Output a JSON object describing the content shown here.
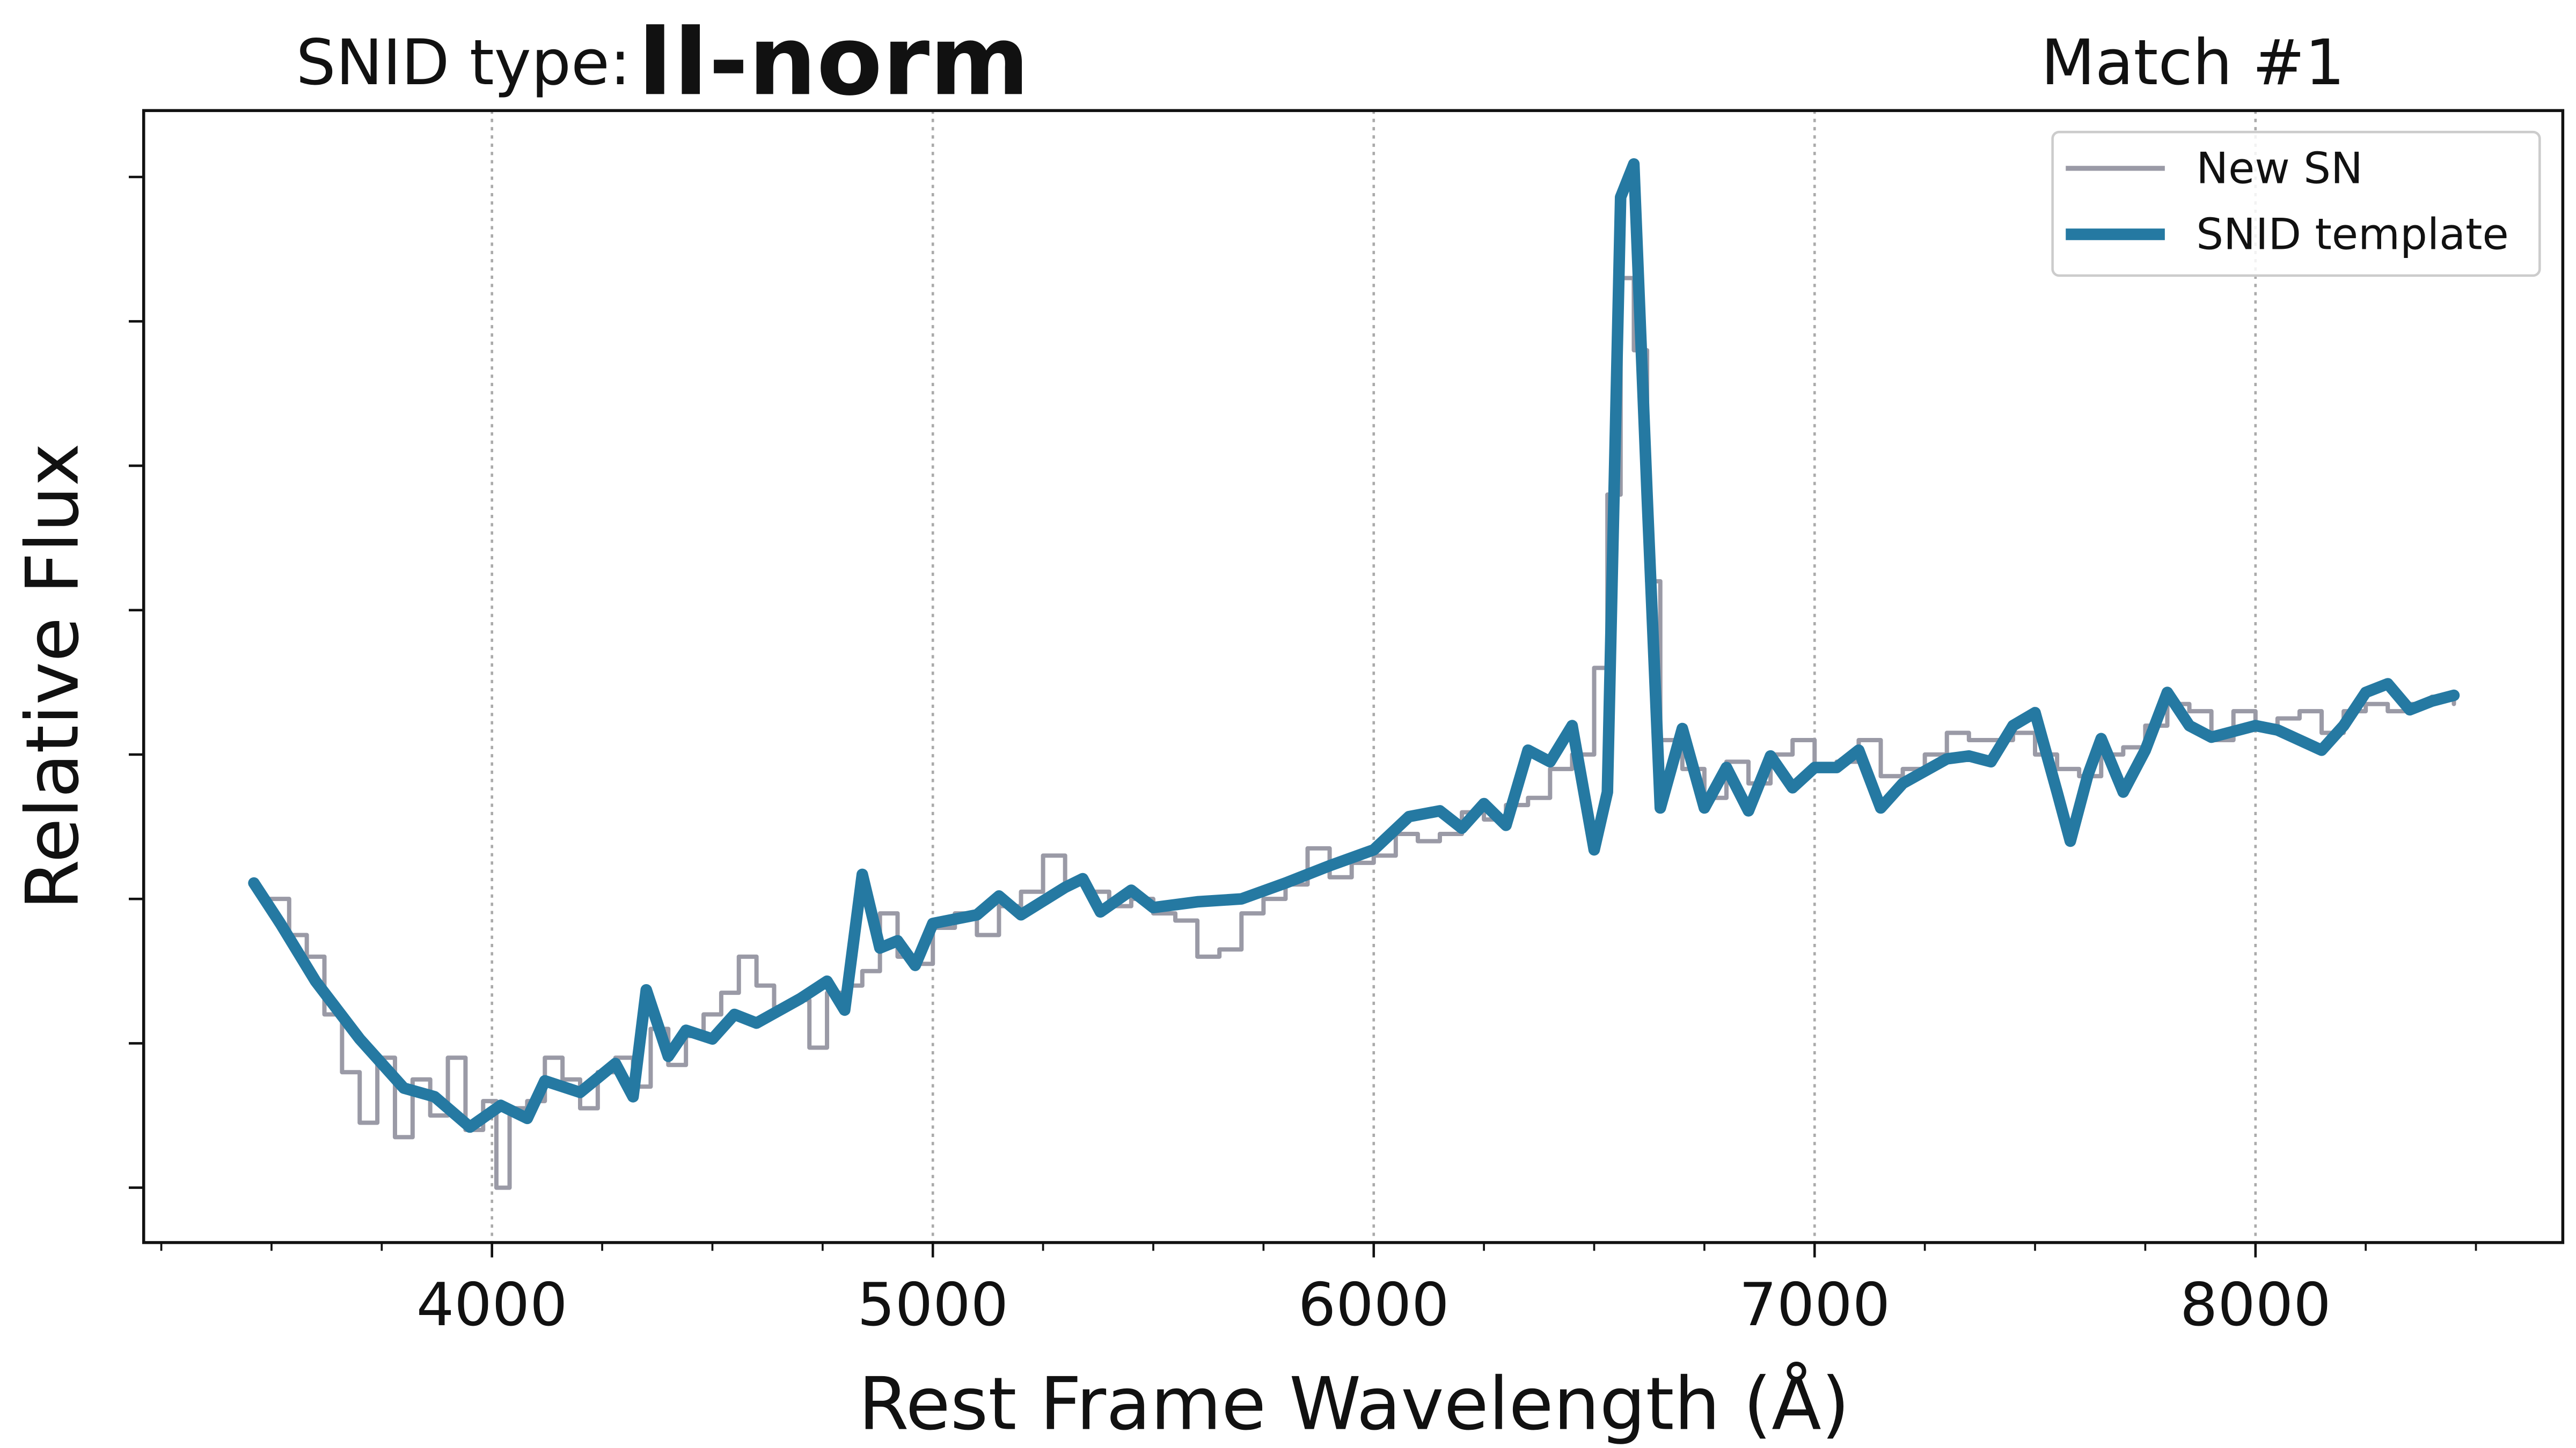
{
  "chart_data": {
    "type": "line",
    "title_prefix": "SNID type:",
    "title": "II-norm",
    "title_color": "#2579a2",
    "subtitle": "Match #1",
    "xlabel": "Rest Frame Wavelength (Å)",
    "ylabel": "Relative Flux",
    "xlim": [
      3210,
      8697
    ],
    "ylim": [
      -0.38,
      7.46
    ],
    "xticks": [
      4000,
      5000,
      6000,
      7000,
      8000
    ],
    "xminorticks": [
      3250,
      3500,
      3750,
      4250,
      4500,
      4750,
      5250,
      5500,
      5750,
      6250,
      6500,
      6750,
      7250,
      7500,
      7750,
      8250,
      8500
    ],
    "yticks": [
      0,
      1,
      2,
      3,
      4,
      5,
      6,
      7
    ],
    "grid": true,
    "legend": "upper right",
    "series": [
      {
        "name": "New SN",
        "color": "#9a9aa6",
        "drawstyle": "steps",
        "x": [
          3480,
          3540,
          3580,
          3620,
          3660,
          3700,
          3740,
          3780,
          3820,
          3860,
          3900,
          3940,
          3980,
          4010,
          4040,
          4080,
          4120,
          4160,
          4200,
          4240,
          4280,
          4320,
          4360,
          4400,
          4440,
          4480,
          4520,
          4560,
          4600,
          4640,
          4680,
          4720,
          4760,
          4800,
          4840,
          4880,
          4920,
          4960,
          5000,
          5050,
          5100,
          5150,
          5200,
          5250,
          5300,
          5350,
          5400,
          5450,
          5500,
          5550,
          5600,
          5650,
          5700,
          5750,
          5800,
          5850,
          5900,
          5950,
          6000,
          6050,
          6100,
          6150,
          6200,
          6250,
          6300,
          6350,
          6400,
          6450,
          6500,
          6530,
          6560,
          6590,
          6620,
          6650,
          6700,
          6750,
          6800,
          6850,
          6900,
          6950,
          7000,
          7050,
          7100,
          7150,
          7200,
          7250,
          7300,
          7350,
          7400,
          7450,
          7500,
          7550,
          7600,
          7650,
          7700,
          7750,
          7800,
          7850,
          7900,
          7950,
          8000,
          8050,
          8100,
          8150,
          8200,
          8250,
          8300,
          8350,
          8400,
          8450
        ],
        "values": [
          2.0,
          1.75,
          1.6,
          1.2,
          0.8,
          0.45,
          0.9,
          0.35,
          0.75,
          0.5,
          0.9,
          0.4,
          0.6,
          0.0,
          0.55,
          0.6,
          0.9,
          0.75,
          0.55,
          0.8,
          0.9,
          0.7,
          1.1,
          0.85,
          1.05,
          1.2,
          1.35,
          1.6,
          1.4,
          1.25,
          1.3,
          0.97,
          1.35,
          1.4,
          1.5,
          1.9,
          1.6,
          1.55,
          1.8,
          1.9,
          1.75,
          1.95,
          2.05,
          2.3,
          2.1,
          2.05,
          1.95,
          2.0,
          1.9,
          1.85,
          1.6,
          1.65,
          1.9,
          2.0,
          2.1,
          2.35,
          2.15,
          2.25,
          2.3,
          2.45,
          2.4,
          2.45,
          2.6,
          2.55,
          2.65,
          2.7,
          2.9,
          3.0,
          3.6,
          4.8,
          6.3,
          5.8,
          4.2,
          3.1,
          2.9,
          2.7,
          2.95,
          2.8,
          3.0,
          3.1,
          2.9,
          2.95,
          3.1,
          2.85,
          2.9,
          3.0,
          3.15,
          3.1,
          3.1,
          3.15,
          3.0,
          2.9,
          2.85,
          3.0,
          3.05,
          3.2,
          3.35,
          3.3,
          3.1,
          3.3,
          3.2,
          3.25,
          3.3,
          3.15,
          3.3,
          3.35,
          3.3,
          3.35,
          3.4,
          3.35
        ]
      },
      {
        "name": "SNID template",
        "color": "#2579a2",
        "drawstyle": "smooth",
        "x": [
          3460,
          3520,
          3600,
          3700,
          3800,
          3870,
          3950,
          4020,
          4080,
          4120,
          4200,
          4280,
          4320,
          4350,
          4400,
          4440,
          4500,
          4550,
          4600,
          4700,
          4760,
          4800,
          4840,
          4880,
          4920,
          4960,
          5000,
          5100,
          5150,
          5200,
          5300,
          5340,
          5380,
          5450,
          5500,
          5600,
          5700,
          5800,
          5900,
          6000,
          6080,
          6150,
          6200,
          6250,
          6300,
          6350,
          6400,
          6450,
          6500,
          6530,
          6560,
          6590,
          6620,
          6650,
          6700,
          6750,
          6800,
          6850,
          6900,
          6950,
          7000,
          7050,
          7100,
          7150,
          7200,
          7300,
          7350,
          7400,
          7450,
          7500,
          7550,
          7580,
          7620,
          7650,
          7700,
          7750,
          7800,
          7850,
          7900,
          8000,
          8050,
          8150,
          8200,
          8250,
          8300,
          8350,
          8400,
          8450
        ],
        "values": [
          2.11,
          1.83,
          1.43,
          1.03,
          0.69,
          0.63,
          0.42,
          0.57,
          0.48,
          0.74,
          0.66,
          0.86,
          0.63,
          1.37,
          0.91,
          1.09,
          1.03,
          1.2,
          1.14,
          1.31,
          1.43,
          1.23,
          2.17,
          1.66,
          1.71,
          1.54,
          1.83,
          1.89,
          2.02,
          1.89,
          2.08,
          2.14,
          1.91,
          2.06,
          1.94,
          1.98,
          2.0,
          2.11,
          2.23,
          2.34,
          2.57,
          2.61,
          2.49,
          2.66,
          2.51,
          3.03,
          2.95,
          3.2,
          2.34,
          2.74,
          6.86,
          7.09,
          4.8,
          2.63,
          3.18,
          2.63,
          2.91,
          2.61,
          2.99,
          2.77,
          2.91,
          2.91,
          3.03,
          2.63,
          2.8,
          2.97,
          2.99,
          2.95,
          3.2,
          3.29,
          2.74,
          2.4,
          2.86,
          3.11,
          2.74,
          3.03,
          3.43,
          3.2,
          3.12,
          3.2,
          3.17,
          3.03,
          3.2,
          3.43,
          3.49,
          3.31,
          3.37,
          3.41
        ]
      }
    ]
  }
}
